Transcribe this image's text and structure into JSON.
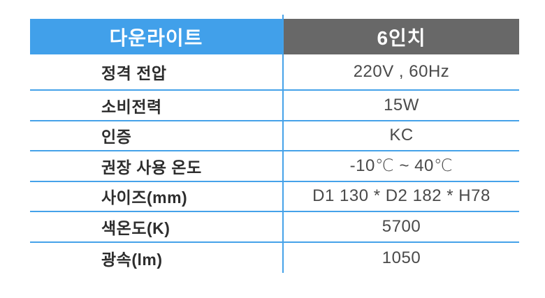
{
  "table": {
    "header": {
      "left": "다운라이트",
      "right": "6인치"
    },
    "rows": [
      {
        "label": "정격 전압",
        "value": "220V , 60Hz"
      },
      {
        "label": "소비전력",
        "value": "15W"
      },
      {
        "label": "인증",
        "value": "KC"
      },
      {
        "label": "권장 사용 온도",
        "value": "-10℃ ~ 40℃"
      },
      {
        "label": "사이즈(mm)",
        "value": "D1 130 * D2 182 * H78"
      },
      {
        "label": "색온도(K)",
        "value": "5700"
      },
      {
        "label": "광속(lm)",
        "value": "1050"
      }
    ]
  },
  "colors": {
    "header_left_bg": "#41A0EA",
    "header_right_bg": "#686868",
    "grid_line": "#45A2E9",
    "header_text": "#FFFFFF",
    "label_text": "#2D2D2D",
    "value_text": "#4A4A4A",
    "background": "#FFFFFF"
  }
}
